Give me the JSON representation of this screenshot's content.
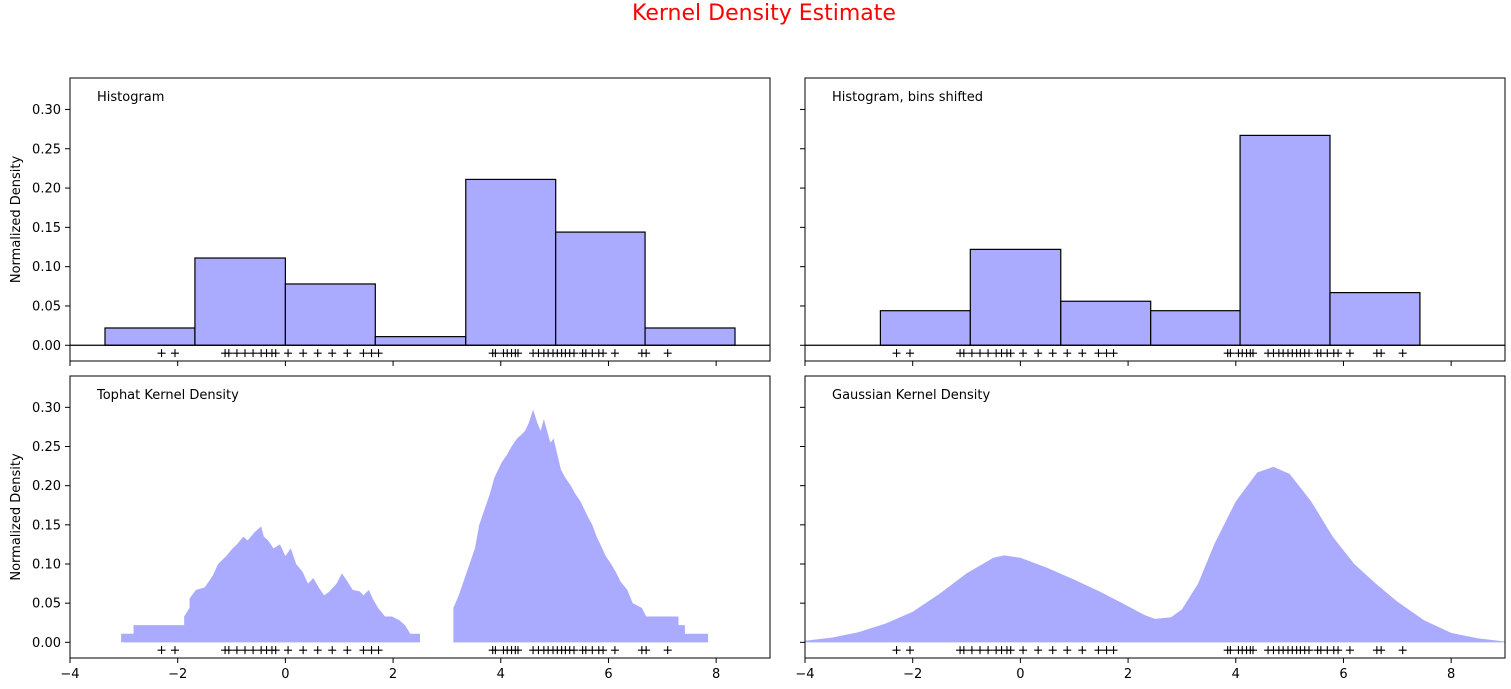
{
  "figure": {
    "suptitle": "Kernel Density Estimate",
    "title_color": "#ff0000",
    "fill_color": "#aaaaff",
    "edge_color": "#000000"
  },
  "chart_data": [
    {
      "type": "bar",
      "title": "Histogram",
      "ylabel": "Normalized Density",
      "xlim": [
        -4,
        9
      ],
      "ylim": [
        -0.02,
        0.34
      ],
      "xticks": [
        "−4",
        "−2",
        "0",
        "2",
        "4",
        "6",
        "8"
      ],
      "yticks": [
        "0.00",
        "0.05",
        "0.10",
        "0.15",
        "0.20",
        "0.25",
        "0.30"
      ],
      "bin_edges": [
        -3.35,
        -1.68,
        0.0,
        1.67,
        3.35,
        5.02,
        6.68,
        8.35
      ],
      "values": [
        0.022,
        0.111,
        0.078,
        0.011,
        0.211,
        0.144,
        0.022
      ]
    },
    {
      "type": "bar",
      "title": "Histogram, bins shifted",
      "xlim": [
        -4,
        9
      ],
      "ylim": [
        -0.02,
        0.34
      ],
      "xticks": [
        "−4",
        "−2",
        "0",
        "2",
        "4",
        "6",
        "8"
      ],
      "yticks": [
        "0.00",
        "0.05",
        "0.10",
        "0.15",
        "0.20",
        "0.25",
        "0.30"
      ],
      "bin_edges": [
        -2.6,
        -0.93,
        0.75,
        2.42,
        4.08,
        5.75,
        7.42
      ],
      "values": [
        0.044,
        0.122,
        0.056,
        0.044,
        0.267,
        0.067
      ]
    },
    {
      "type": "area",
      "title": "Tophat Kernel Density",
      "ylabel": "Normalized Density",
      "xlim": [
        -4,
        9
      ],
      "ylim": [
        -0.02,
        0.34
      ],
      "xticks": [
        "−4",
        "−2",
        "0",
        "2",
        "4",
        "6",
        "8"
      ],
      "yticks": [
        "0.00",
        "0.05",
        "0.10",
        "0.15",
        "0.20",
        "0.25",
        "0.30"
      ],
      "x": [
        -3.05,
        -3.05,
        -2.82,
        -2.82,
        -1.88,
        -1.88,
        -1.78,
        -1.78,
        -1.66,
        -1.5,
        -1.35,
        -1.25,
        -1.1,
        -0.98,
        -0.9,
        -0.78,
        -0.7,
        -0.58,
        -0.45,
        -0.4,
        -0.32,
        -0.22,
        -0.1,
        0.0,
        0.1,
        0.2,
        0.32,
        0.42,
        0.52,
        0.62,
        0.72,
        0.82,
        0.95,
        1.05,
        1.15,
        1.25,
        1.38,
        1.45,
        1.55,
        1.62,
        1.72,
        1.85,
        1.98,
        2.12,
        2.22,
        2.32,
        2.4,
        2.5,
        2.5,
        3.12,
        3.12,
        3.22,
        3.32,
        3.42,
        3.52,
        3.6,
        3.7,
        3.8,
        3.88,
        3.95,
        4.02,
        4.12,
        4.2,
        4.3,
        4.38,
        4.45,
        4.52,
        4.6,
        4.68,
        4.74,
        4.8,
        4.86,
        4.92,
        4.98,
        5.05,
        5.12,
        5.2,
        5.3,
        5.38,
        5.48,
        5.55,
        5.62,
        5.7,
        5.78,
        5.85,
        5.95,
        6.05,
        6.15,
        6.22,
        6.35,
        6.45,
        6.62,
        6.7,
        6.85,
        7.3,
        7.3,
        7.42,
        7.42,
        7.85,
        7.85
      ],
      "y": [
        0.0,
        0.011,
        0.011,
        0.022,
        0.022,
        0.033,
        0.044,
        0.056,
        0.067,
        0.07,
        0.085,
        0.1,
        0.11,
        0.12,
        0.125,
        0.135,
        0.13,
        0.14,
        0.148,
        0.135,
        0.13,
        0.12,
        0.125,
        0.11,
        0.12,
        0.1,
        0.09,
        0.075,
        0.082,
        0.07,
        0.06,
        0.065,
        0.075,
        0.088,
        0.078,
        0.067,
        0.065,
        0.06,
        0.067,
        0.056,
        0.044,
        0.033,
        0.033,
        0.028,
        0.022,
        0.011,
        0.011,
        0.011,
        0.0,
        0.0,
        0.044,
        0.06,
        0.08,
        0.1,
        0.12,
        0.15,
        0.17,
        0.19,
        0.21,
        0.22,
        0.23,
        0.24,
        0.25,
        0.26,
        0.265,
        0.27,
        0.28,
        0.297,
        0.28,
        0.27,
        0.285,
        0.27,
        0.255,
        0.26,
        0.24,
        0.22,
        0.21,
        0.2,
        0.19,
        0.18,
        0.17,
        0.16,
        0.15,
        0.135,
        0.125,
        0.11,
        0.1,
        0.088,
        0.078,
        0.067,
        0.05,
        0.044,
        0.033,
        0.033,
        0.033,
        0.022,
        0.022,
        0.011,
        0.011,
        0.0
      ]
    },
    {
      "type": "area",
      "title": "Gaussian Kernel Density",
      "xlim": [
        -4,
        9
      ],
      "ylim": [
        -0.02,
        0.34
      ],
      "xticks": [
        "−4",
        "−2",
        "0",
        "2",
        "4",
        "6",
        "8"
      ],
      "yticks": [
        "0.00",
        "0.05",
        "0.10",
        "0.15",
        "0.20",
        "0.25",
        "0.30"
      ],
      "x": [
        -4.0,
        -3.5,
        -3.0,
        -2.5,
        -2.0,
        -1.5,
        -1.0,
        -0.5,
        -0.3,
        0.0,
        0.5,
        1.0,
        1.5,
        2.0,
        2.3,
        2.5,
        2.8,
        3.0,
        3.3,
        3.6,
        4.0,
        4.4,
        4.7,
        5.0,
        5.4,
        5.8,
        6.2,
        6.6,
        7.0,
        7.5,
        8.0,
        8.5,
        9.0
      ],
      "y": [
        0.002,
        0.006,
        0.013,
        0.024,
        0.039,
        0.062,
        0.088,
        0.108,
        0.111,
        0.108,
        0.095,
        0.08,
        0.064,
        0.046,
        0.035,
        0.03,
        0.032,
        0.042,
        0.075,
        0.125,
        0.18,
        0.217,
        0.224,
        0.215,
        0.18,
        0.135,
        0.1,
        0.075,
        0.052,
        0.028,
        0.012,
        0.005,
        0.001
      ]
    }
  ],
  "rug": {
    "marker": "+",
    "points": [
      -2.3,
      -2.05,
      -1.12,
      -1.05,
      -0.9,
      -0.75,
      -0.6,
      -0.45,
      -0.35,
      -0.25,
      -0.18,
      0.05,
      0.33,
      0.6,
      0.87,
      1.15,
      1.45,
      1.6,
      1.73,
      3.85,
      3.9,
      4.05,
      4.12,
      4.2,
      4.27,
      4.32,
      4.6,
      4.7,
      4.8,
      4.88,
      4.97,
      5.05,
      5.13,
      5.2,
      5.28,
      5.36,
      5.52,
      5.58,
      5.7,
      5.82,
      5.9,
      6.12,
      6.62,
      6.7,
      7.1
    ]
  }
}
